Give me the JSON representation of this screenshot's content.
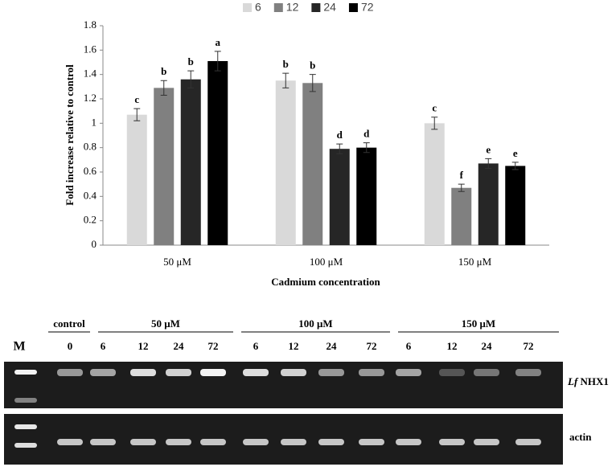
{
  "chart_data": {
    "type": "bar",
    "y_label": "Fold increase relative to control",
    "x_label": "Cadmium concentration",
    "categories": [
      "50 μM",
      "100 μM",
      "150 μM"
    ],
    "series": [
      {
        "name": "6",
        "color": "#d9d9d9",
        "values": [
          1.07,
          1.35,
          1.0
        ],
        "errors": [
          0.05,
          0.06,
          0.05
        ],
        "letters": [
          "c",
          "b",
          "c"
        ]
      },
      {
        "name": "12",
        "color": "#808080",
        "values": [
          1.29,
          1.33,
          0.47
        ],
        "errors": [
          0.06,
          0.07,
          0.03
        ],
        "letters": [
          "b",
          "b",
          "f"
        ]
      },
      {
        "name": "24",
        "color": "#262626",
        "values": [
          1.36,
          0.79,
          0.67
        ],
        "errors": [
          0.07,
          0.04,
          0.04
        ],
        "letters": [
          "b",
          "d",
          "e"
        ]
      },
      {
        "name": "72",
        "color": "#000000",
        "values": [
          1.51,
          0.8,
          0.65
        ],
        "errors": [
          0.08,
          0.04,
          0.03
        ],
        "letters": [
          "a",
          "d",
          "e"
        ]
      }
    ],
    "ylim": [
      0,
      1.8
    ],
    "yticks": [
      0,
      0.2,
      0.4,
      0.6,
      0.8,
      1,
      1.2,
      1.4,
      1.6,
      1.8
    ],
    "legend": "top"
  },
  "gel": {
    "marker": "M",
    "groups": [
      {
        "label": "control",
        "lanes": [
          "0"
        ]
      },
      {
        "label": "50 μM",
        "lanes": [
          "6",
          "12",
          "24",
          "72"
        ]
      },
      {
        "label": "100 μM",
        "lanes": [
          "6",
          "12",
          "24",
          "72"
        ]
      },
      {
        "label": "150 μM",
        "lanes": [
          "6",
          "12",
          "24",
          "72"
        ]
      }
    ],
    "rows": [
      {
        "italic": "Lf",
        "label": "NHX1"
      },
      {
        "label": "actin"
      }
    ]
  }
}
